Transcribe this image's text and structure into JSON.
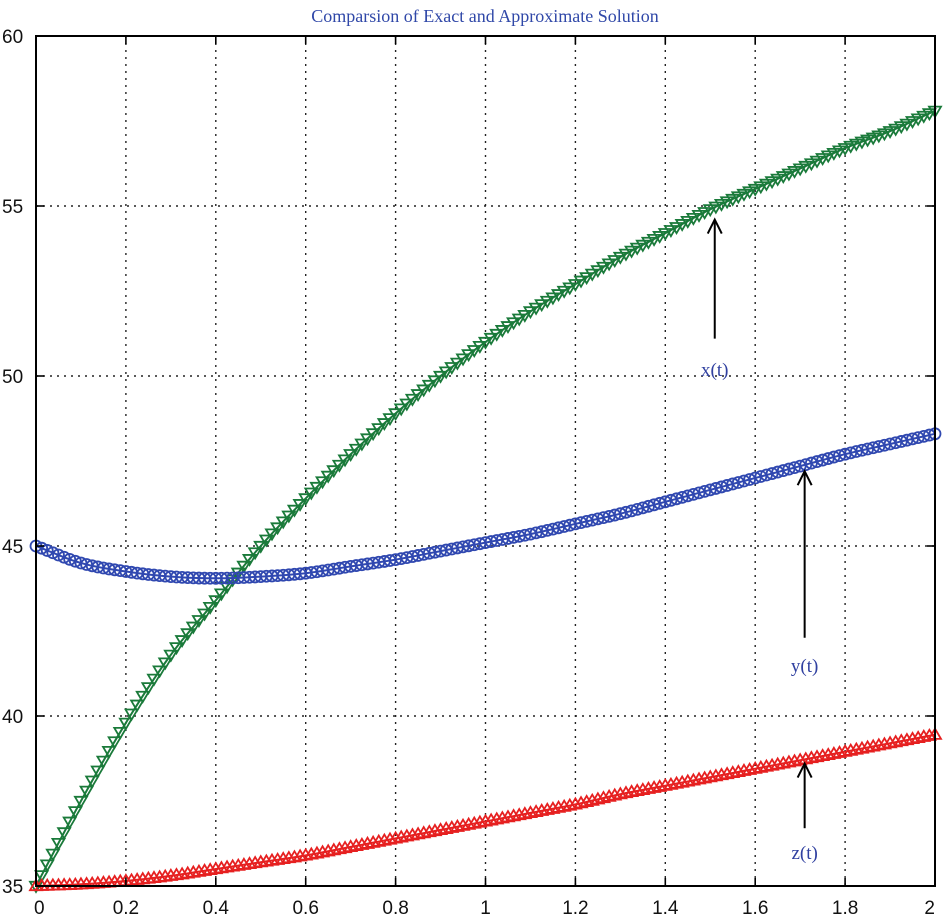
{
  "chart_data": {
    "type": "line",
    "title": "Comparsion of Exact and Approximate Solution",
    "xlabel": "",
    "ylabel": "",
    "xlim": [
      0,
      2
    ],
    "ylim": [
      35,
      60
    ],
    "xticks": [
      0,
      0.2,
      0.4,
      0.6,
      0.8,
      1,
      1.2,
      1.4,
      1.6,
      1.8,
      2
    ],
    "xtick_labels": [
      "0",
      "0.2",
      "0.4",
      "0.6",
      "0.8",
      "1",
      "1.2",
      "1.4",
      "1.6",
      "1.8",
      "2"
    ],
    "yticks": [
      35,
      40,
      45,
      50,
      55,
      60
    ],
    "ytick_labels": [
      "35",
      "40",
      "45",
      "50",
      "55",
      "60"
    ],
    "grid": true,
    "series": [
      {
        "key": "x",
        "color": "#1a7a3a",
        "marker": "triangle-down",
        "x": [
          0,
          0.1,
          0.2,
          0.3,
          0.4,
          0.5,
          0.6,
          0.7,
          0.8,
          0.9,
          1.0,
          1.1,
          1.2,
          1.3,
          1.4,
          1.5,
          1.6,
          1.7,
          1.8,
          1.9,
          2.0
        ],
        "y": [
          35.0,
          37.5,
          39.8,
          41.8,
          43.4,
          45.0,
          46.4,
          47.7,
          48.9,
          50.0,
          51.0,
          51.9,
          52.7,
          53.5,
          54.2,
          54.9,
          55.5,
          56.1,
          56.7,
          57.2,
          57.8
        ]
      },
      {
        "key": "y",
        "color": "#3048b0",
        "marker": "circle",
        "x": [
          0,
          0.1,
          0.2,
          0.3,
          0.4,
          0.5,
          0.6,
          0.7,
          0.8,
          0.9,
          1.0,
          1.1,
          1.2,
          1.3,
          1.4,
          1.5,
          1.6,
          1.7,
          1.8,
          1.9,
          2.0
        ],
        "y": [
          45.0,
          44.5,
          44.25,
          44.1,
          44.05,
          44.1,
          44.2,
          44.4,
          44.6,
          44.85,
          45.1,
          45.35,
          45.65,
          45.95,
          46.3,
          46.65,
          47.0,
          47.35,
          47.7,
          48.0,
          48.3
        ]
      },
      {
        "key": "z",
        "color": "#e62020",
        "marker": "triangle-up",
        "x": [
          0,
          0.1,
          0.2,
          0.3,
          0.4,
          0.5,
          0.6,
          0.7,
          0.8,
          0.9,
          1.0,
          1.1,
          1.2,
          1.3,
          1.4,
          1.5,
          1.6,
          1.7,
          1.8,
          1.9,
          2.0
        ],
        "y": [
          35.0,
          35.05,
          35.15,
          35.3,
          35.5,
          35.7,
          35.9,
          36.15,
          36.4,
          36.65,
          36.9,
          37.15,
          37.4,
          37.7,
          37.95,
          38.2,
          38.45,
          38.7,
          38.95,
          39.2,
          39.45
        ]
      }
    ],
    "annotations": [
      {
        "text": "x(t)",
        "label_x": 1.51,
        "label_y": 50.0,
        "arrow_x": 1.51,
        "arrow_from_y": 51.1,
        "arrow_to_y": 54.6
      },
      {
        "text": "y(t)",
        "label_x": 1.71,
        "label_y": 41.3,
        "arrow_x": 1.71,
        "arrow_from_y": 42.3,
        "arrow_to_y": 47.2
      },
      {
        "text": "z(t)",
        "label_x": 1.71,
        "label_y": 35.8,
        "arrow_x": 1.71,
        "arrow_from_y": 36.7,
        "arrow_to_y": 38.6
      }
    ]
  }
}
